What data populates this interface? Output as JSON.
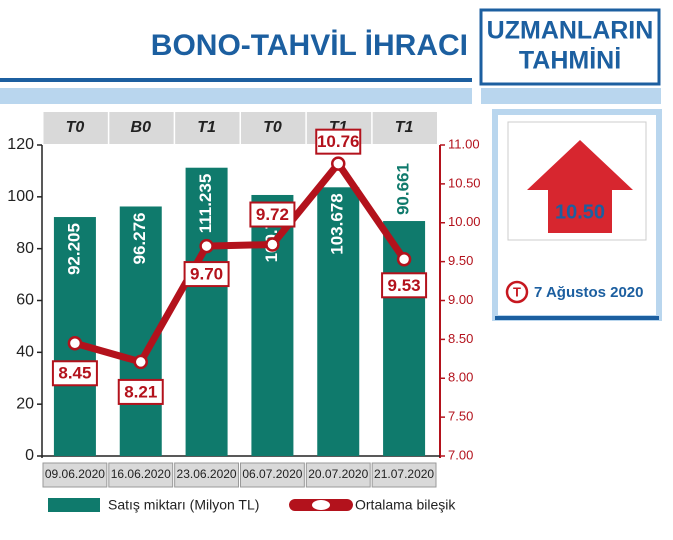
{
  "chart_data": {
    "type": "bar",
    "title": "BONO-TAHVİL İHRACI",
    "categories": [
      "09.06.2020",
      "16.06.2020",
      "23.06.2020",
      "06.07.2020",
      "20.07.2020",
      "21.07.2020"
    ],
    "category_codes": [
      "T0",
      "B0",
      "T1",
      "T0",
      "T1",
      "T1"
    ],
    "series": [
      {
        "name": "Satış miktarı (Milyon TL)",
        "type": "bar",
        "color": "#0f7a6c",
        "values": [
          92.205,
          96.276,
          111.235,
          100.719,
          103.678,
          90.661
        ]
      },
      {
        "name": "Ortalama bileşik",
        "type": "line",
        "axis": "y2",
        "color": "#b3121c",
        "values": [
          8.45,
          8.21,
          9.7,
          9.72,
          10.76,
          9.53
        ],
        "value_labels": [
          "8.45",
          "8.21",
          "9.70",
          "9.72",
          "10.76",
          "9.53"
        ]
      }
    ],
    "ylim": [
      0,
      120
    ],
    "yticks": [
      0,
      20,
      40,
      60,
      80,
      100,
      120
    ],
    "y2lim": [
      7.0,
      11.0
    ],
    "y2ticks": [
      {
        "value": 7.0,
        "label": "7.00"
      },
      {
        "value": 7.5,
        "label": "7.50"
      },
      {
        "value": 8.0,
        "label": "8.00"
      },
      {
        "value": 8.5,
        "label": "8.50"
      },
      {
        "value": 9.0,
        "label": "9.00"
      },
      {
        "value": 9.5,
        "label": "9.50"
      },
      {
        "value": 10.0,
        "label": "10.00"
      },
      {
        "value": 10.5,
        "label": "10.50"
      },
      {
        "value": 11.0,
        "label": "11.00"
      }
    ]
  },
  "forecast": {
    "title_lines": [
      "UZMANLARIN",
      "TAHMİNİ"
    ],
    "value": "10.50",
    "date": "7 Ağustos 2020"
  }
}
